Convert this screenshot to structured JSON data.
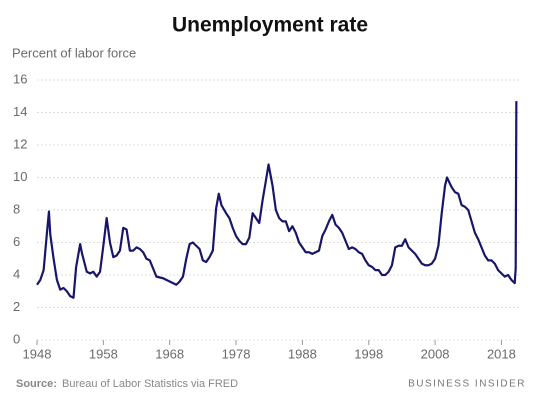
{
  "chart_data": {
    "type": "line",
    "title": "Unemployment rate",
    "y_label": "Percent of labor force",
    "source_label": "Source:",
    "source": "Bureau of Labor Statistics via FRED",
    "brand": "BUSINESS INSIDER",
    "color": "#18166b",
    "grid": true,
    "xlim": [
      1948,
      2020.8
    ],
    "xticks": [
      1948,
      1958,
      1968,
      1978,
      1988,
      1998,
      2008,
      2018
    ],
    "ylim": [
      0,
      16
    ],
    "yticks": [
      0,
      2,
      4,
      6,
      8,
      10,
      12,
      14,
      16
    ],
    "x": [
      1948.0,
      1948.5,
      1949.0,
      1949.5,
      1949.8,
      1950.0,
      1950.5,
      1951.0,
      1951.5,
      1952.0,
      1952.5,
      1953.0,
      1953.5,
      1953.9,
      1954.5,
      1954.8,
      1955.5,
      1956.0,
      1956.5,
      1957.0,
      1957.5,
      1958.0,
      1958.5,
      1959.0,
      1959.5,
      1960.0,
      1960.5,
      1961.0,
      1961.5,
      1962.0,
      1962.5,
      1963.0,
      1963.5,
      1964.0,
      1964.5,
      1965.0,
      1965.5,
      1966.0,
      1967.0,
      1968.0,
      1968.5,
      1969.0,
      1969.5,
      1970.0,
      1970.5,
      1971.0,
      1971.5,
      1972.0,
      1972.5,
      1973.0,
      1973.5,
      1974.0,
      1974.5,
      1975.0,
      1975.4,
      1975.8,
      1976.5,
      1977.0,
      1977.5,
      1978.0,
      1978.5,
      1979.0,
      1979.5,
      1980.0,
      1980.5,
      1981.0,
      1981.5,
      1982.0,
      1982.5,
      1982.9,
      1983.5,
      1984.0,
      1984.5,
      1985.0,
      1985.5,
      1986.0,
      1986.5,
      1987.0,
      1987.5,
      1988.0,
      1988.5,
      1989.0,
      1989.5,
      1990.0,
      1990.5,
      1991.0,
      1991.5,
      1992.0,
      1992.5,
      1993.0,
      1993.5,
      1994.0,
      1994.5,
      1995.0,
      1995.5,
      1996.0,
      1996.5,
      1997.0,
      1997.5,
      1998.0,
      1998.5,
      1999.0,
      1999.5,
      2000.0,
      2000.5,
      2001.0,
      2001.5,
      2002.0,
      2002.5,
      2003.0,
      2003.5,
      2004.0,
      2004.5,
      2005.0,
      2005.5,
      2006.0,
      2006.5,
      2007.0,
      2007.5,
      2008.0,
      2008.5,
      2009.0,
      2009.5,
      2009.8,
      2010.5,
      2011.0,
      2011.5,
      2012.0,
      2012.5,
      2013.0,
      2013.5,
      2014.0,
      2014.5,
      2015.0,
      2015.5,
      2016.0,
      2016.5,
      2017.0,
      2017.5,
      2018.0,
      2018.5,
      2019.0,
      2019.5,
      2020.0,
      2020.15,
      2020.25
    ],
    "values": [
      3.4,
      3.7,
      4.3,
      6.6,
      7.9,
      6.5,
      5.0,
      3.7,
      3.1,
      3.2,
      3.0,
      2.7,
      2.6,
      4.5,
      5.9,
      5.3,
      4.2,
      4.1,
      4.2,
      3.9,
      4.2,
      5.8,
      7.5,
      6.0,
      5.1,
      5.2,
      5.5,
      6.9,
      6.8,
      5.5,
      5.5,
      5.7,
      5.6,
      5.4,
      5.0,
      4.9,
      4.4,
      3.9,
      3.8,
      3.6,
      3.5,
      3.4,
      3.6,
      3.9,
      5.0,
      5.9,
      6.0,
      5.8,
      5.6,
      4.9,
      4.8,
      5.1,
      5.5,
      8.1,
      9.0,
      8.3,
      7.8,
      7.5,
      6.9,
      6.4,
      6.1,
      5.9,
      5.9,
      6.3,
      7.8,
      7.5,
      7.2,
      8.6,
      9.8,
      10.8,
      9.5,
      8.0,
      7.5,
      7.3,
      7.3,
      6.7,
      7.0,
      6.6,
      6.0,
      5.7,
      5.4,
      5.4,
      5.3,
      5.4,
      5.5,
      6.4,
      6.8,
      7.3,
      7.7,
      7.1,
      6.9,
      6.6,
      6.1,
      5.6,
      5.7,
      5.6,
      5.4,
      5.3,
      4.9,
      4.6,
      4.5,
      4.3,
      4.3,
      4.0,
      4.0,
      4.2,
      4.6,
      5.7,
      5.8,
      5.8,
      6.2,
      5.7,
      5.5,
      5.3,
      5.0,
      4.7,
      4.6,
      4.6,
      4.7,
      5.0,
      5.8,
      7.8,
      9.5,
      10.0,
      9.4,
      9.1,
      9.0,
      8.3,
      8.2,
      8.0,
      7.3,
      6.6,
      6.2,
      5.7,
      5.2,
      4.9,
      4.9,
      4.7,
      4.3,
      4.1,
      3.9,
      4.0,
      3.7,
      3.5,
      4.4,
      14.7
    ]
  }
}
